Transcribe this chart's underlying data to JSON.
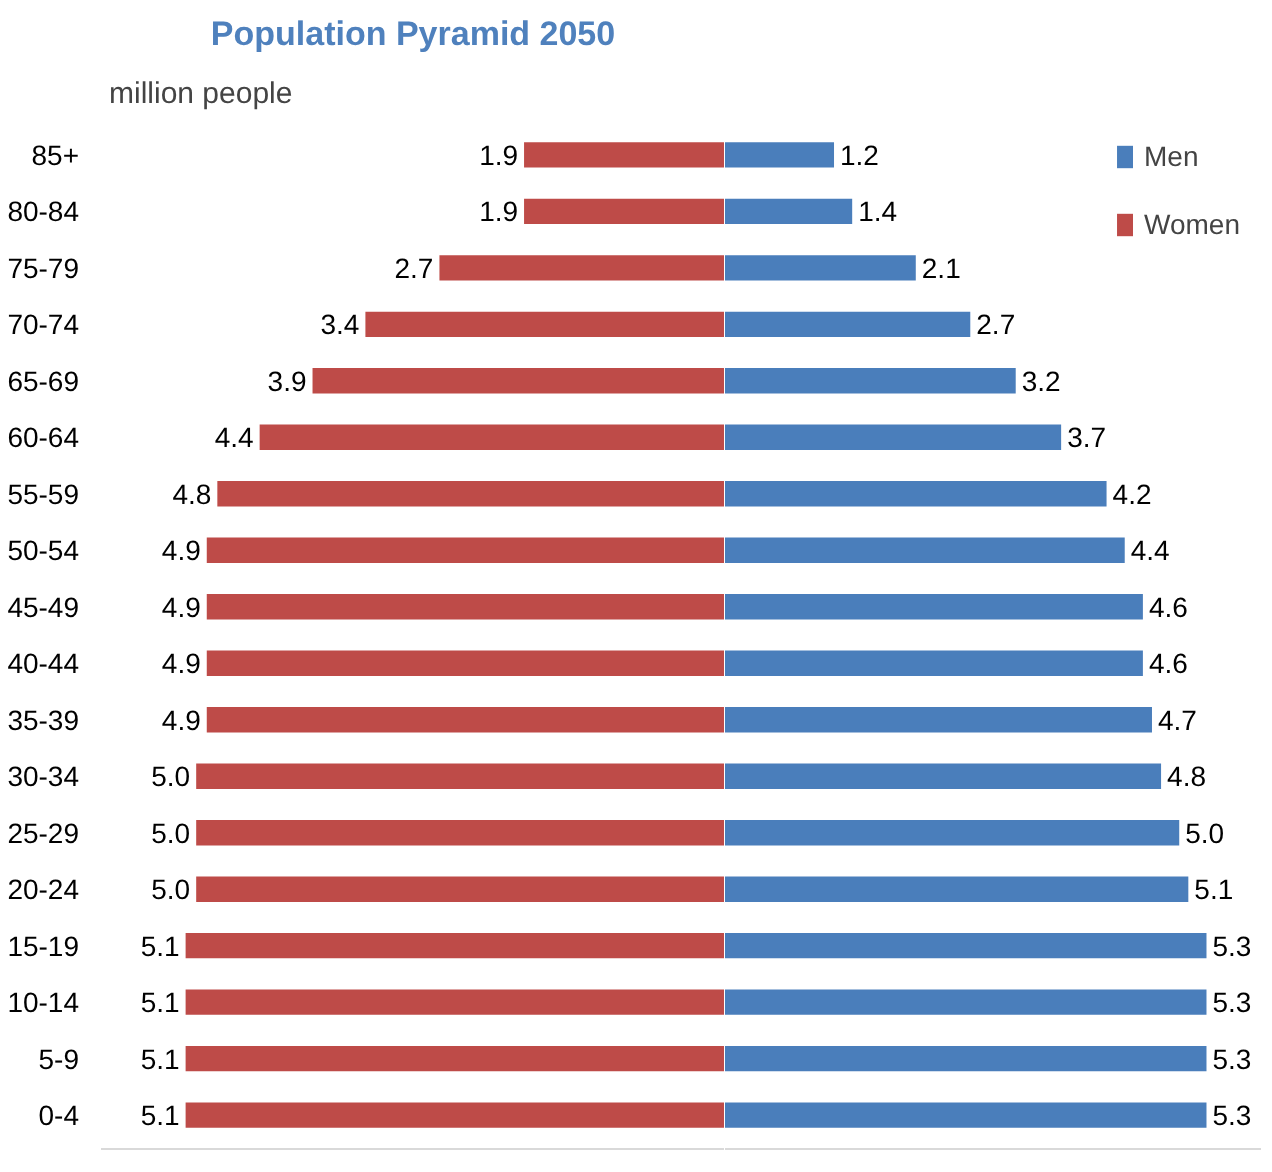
{
  "chart_data": [
    {
      "type": "bar",
      "orientation": "horizontal",
      "title": "Population Pyramid 2050",
      "annotations": [
        "million people"
      ],
      "categories": [
        "85+",
        "80-84",
        "75-79",
        "70-74",
        "65-69",
        "60-64",
        "55-59",
        "50-54",
        "45-49",
        "40-44",
        "35-39",
        "30-34",
        "25-29",
        "20-24",
        "15-19",
        "10-14",
        "5-9",
        "0-4"
      ],
      "series": [
        {
          "name": "Women",
          "color": "#be4b48",
          "values": [
            1.9,
            1.9,
            2.7,
            3.4,
            3.9,
            4.4,
            4.8,
            4.9,
            4.9,
            4.9,
            4.9,
            5.0,
            5.0,
            5.0,
            5.1,
            5.1,
            5.1,
            5.1
          ],
          "value_labels": [
            "1.9",
            "1.9",
            "2.7",
            "3.4",
            "3.9",
            "4.4",
            "4.8",
            "4.9",
            "4.9",
            "4.9",
            "4.9",
            "5.0",
            "5.0",
            "5.0",
            "5.1",
            "5.1",
            "5.1",
            "5.1"
          ]
        }
      ],
      "xlim": [
        5.9,
        0
      ],
      "tick_labels": "y"
    },
    {
      "type": "bar",
      "orientation": "horizontal",
      "categories": [
        null,
        null,
        null,
        null,
        null,
        null,
        null,
        null,
        null,
        null,
        null,
        null,
        null,
        null,
        null,
        null,
        null,
        null
      ],
      "series": [
        {
          "name": "Men",
          "color": "#4a7ebb",
          "values": [
            1.2,
            1.4,
            2.1,
            2.7,
            3.2,
            3.7,
            4.2,
            4.4,
            4.6,
            4.6,
            4.7,
            4.8,
            5.0,
            5.1,
            5.3,
            5.3,
            5.3,
            5.3
          ],
          "value_labels": [
            "1.2",
            "1.4",
            "2.1",
            "2.7",
            "3.2",
            "3.7",
            "4.2",
            "4.4",
            "4.6",
            "4.6",
            "4.7",
            "4.8",
            "5.0",
            "5.1",
            "5.3",
            "5.3",
            "5.3",
            "5.3"
          ]
        }
      ],
      "xlim": [
        0,
        5.9
      ],
      "legend": "top right",
      "tick_labels": false
    }
  ]
}
